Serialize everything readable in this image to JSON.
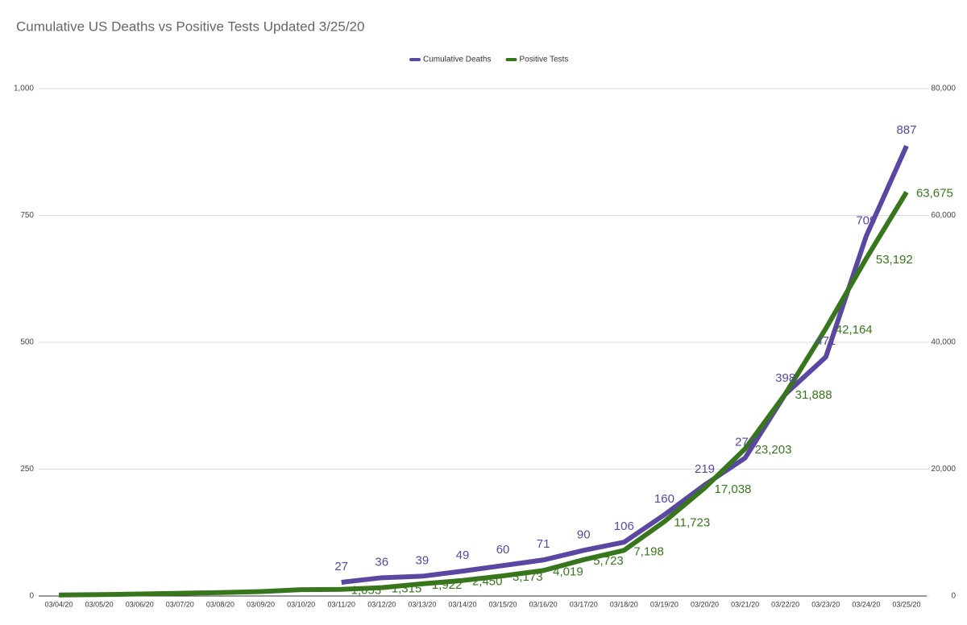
{
  "chart_data": {
    "type": "line",
    "title": "Cumulative US Deaths vs Positive Tests Updated 3/25/20",
    "categories": [
      "03/04/20",
      "03/05/20",
      "03/06/20",
      "03/07/20",
      "03/08/20",
      "03/09/20",
      "03/10/20",
      "03/11/20",
      "03/12/20",
      "03/13/20",
      "03/14/20",
      "03/15/20",
      "03/16/20",
      "03/17/20",
      "03/18/20",
      "03/19/20",
      "03/20/20",
      "03/21/20",
      "03/22/20",
      "03/23/20",
      "03/24/20",
      "03/25/20"
    ],
    "series": [
      {
        "name": "Cumulative Deaths",
        "color": "#5b47a2",
        "axis": "y",
        "values": [
          null,
          null,
          null,
          null,
          null,
          null,
          null,
          27,
          36,
          39,
          49,
          60,
          71,
          90,
          106,
          160,
          219,
          272,
          398,
          471,
          709,
          887
        ]
      },
      {
        "name": "Positive Tests",
        "color": "#38761d",
        "axis": "y2",
        "values": [
          158,
          221,
          319,
          435,
          541,
          704,
          994,
          1053,
          1315,
          1922,
          2450,
          3173,
          4019,
          5723,
          7198,
          11723,
          17038,
          23203,
          31888,
          42164,
          53192,
          63675
        ],
        "value_labels": [
          null,
          null,
          null,
          null,
          null,
          null,
          null,
          "1,053",
          "1,315",
          "1,922",
          "2,450",
          "3,173",
          "4,019",
          "5,723",
          "7,198",
          "11,723",
          "17,038",
          "23,203",
          "31,888",
          "42,164",
          "53,192",
          "63,675"
        ]
      }
    ],
    "ylim": [
      0,
      1000
    ],
    "yticks": [
      0,
      250,
      500,
      750,
      {
        "value": 1000,
        "label": "1,000"
      }
    ],
    "y2lim": [
      0,
      80000
    ],
    "y2ticks": [
      0,
      {
        "value": 20000,
        "label": "20,000"
      },
      {
        "value": 40000,
        "label": "40,000"
      },
      {
        "value": 60000,
        "label": "60,000"
      },
      {
        "value": 80000,
        "label": "80,000"
      }
    ],
    "grid": true,
    "legend": "top"
  }
}
